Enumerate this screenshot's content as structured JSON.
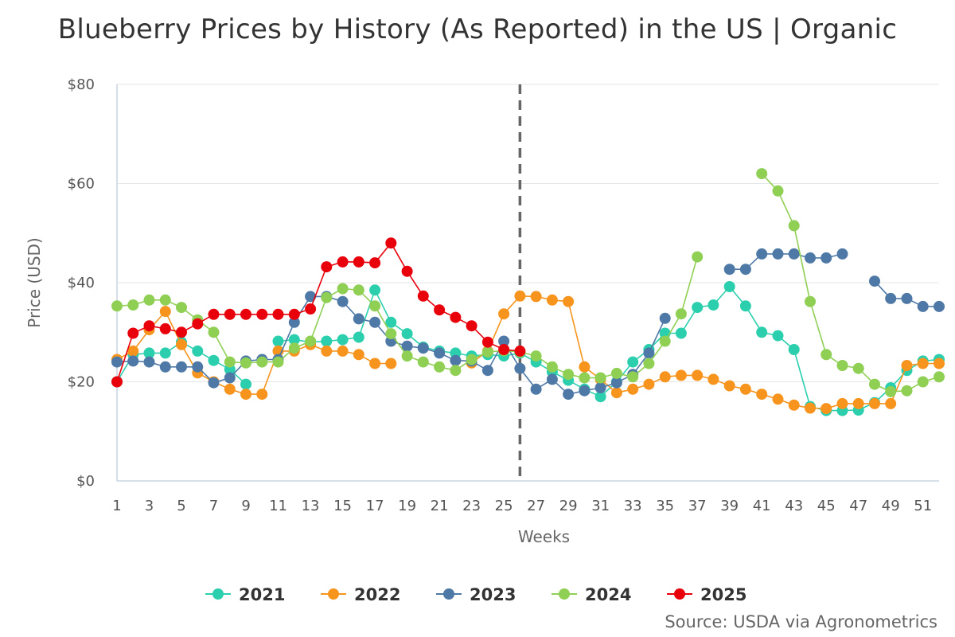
{
  "chart_data": {
    "type": "line",
    "title": "Blueberry Prices by History (As Reported) in the US | Organic",
    "xlabel": "Weeks",
    "ylabel": "Price (USD)",
    "ylim": [
      0,
      80
    ],
    "yticks": [
      0,
      20,
      40,
      60,
      80
    ],
    "ytick_labels": [
      "$0",
      "$20",
      "$40",
      "$60",
      "$80"
    ],
    "xlim": [
      1,
      52
    ],
    "xticks": [
      1,
      3,
      5,
      7,
      9,
      11,
      13,
      15,
      17,
      19,
      21,
      23,
      25,
      27,
      29,
      31,
      33,
      35,
      37,
      39,
      41,
      43,
      45,
      47,
      49,
      51
    ],
    "current_week_marker": 26,
    "grid": "horizontal",
    "legend_position": "bottom-center",
    "series": [
      {
        "name": "2021",
        "color": "#2bcfae",
        "values": [
          20,
          25.5,
          25.8,
          25.8,
          28,
          26.2,
          24.3,
          22.5,
          19.5,
          null,
          28.2,
          28.5,
          28,
          28.2,
          28.5,
          29,
          38.5,
          32,
          29.7,
          27,
          26.2,
          25.8,
          25.2,
          25.5,
          25.2,
          25.8,
          24,
          22,
          20.3,
          18.5,
          17,
          20,
          24,
          26.5,
          29.8,
          29.8,
          35,
          35.5,
          39.2,
          35.3,
          30,
          29.3,
          26.5,
          15,
          14.2,
          14.2,
          14.3,
          15.8,
          18.8,
          22.3,
          24.2,
          24.5
        ]
      },
      {
        "name": "2022",
        "color": "#f7941d",
        "values": [
          24.5,
          26.2,
          30.5,
          34.2,
          27.5,
          21.8,
          20,
          18.5,
          17.5,
          17.5,
          26.2,
          26.2,
          27.5,
          26.2,
          26.2,
          25.5,
          23.7,
          23.7,
          null,
          null,
          null,
          null,
          23.8,
          26.2,
          33.7,
          37.3,
          37.2,
          36.5,
          36.2,
          23,
          20.5,
          17.8,
          18.5,
          19.5,
          21,
          21.3,
          21.3,
          20.5,
          19.2,
          18.5,
          17.5,
          16.5,
          15.3,
          14.7,
          14.6,
          15.6,
          15.6,
          15.6,
          15.6,
          23.3,
          23.7,
          23.7
        ]
      },
      {
        "name": "2023",
        "color": "#4e79a7",
        "values": [
          24,
          24.2,
          24,
          23,
          23,
          23,
          19.8,
          20.8,
          24.2,
          24.5,
          24.5,
          32,
          37.2,
          37.2,
          36.2,
          32.7,
          32,
          28.2,
          27.2,
          26.8,
          25.8,
          24.3,
          24.2,
          22.3,
          28.2,
          22.7,
          18.5,
          20.5,
          17.5,
          18.2,
          18.8,
          19.8,
          21.5,
          25.8,
          32.8,
          null,
          null,
          null,
          42.7,
          42.7,
          45.8,
          45.8,
          45.8,
          45,
          45,
          45.8,
          null,
          40.3,
          36.8,
          36.8,
          35.2,
          35.2
        ]
      },
      {
        "name": "2024",
        "color": "#8fcf54",
        "values": [
          35.3,
          35.5,
          36.5,
          36.5,
          35,
          32.5,
          30,
          24,
          23.8,
          24,
          24,
          26.8,
          28.2,
          37,
          38.8,
          38.5,
          35.3,
          29.7,
          25.2,
          24,
          23,
          22.3,
          24.5,
          26,
          26.3,
          26,
          25.2,
          23,
          21.5,
          20.8,
          20.8,
          21.7,
          21,
          23.7,
          28.2,
          33.7,
          45.2,
          null,
          null,
          null,
          62,
          58.5,
          51.5,
          36.2,
          25.5,
          23.3,
          22.7,
          19.5,
          18,
          18.2,
          20,
          21
        ]
      },
      {
        "name": "2025",
        "color": "#e8000b",
        "values": [
          20,
          29.8,
          31.3,
          30.7,
          30,
          31.7,
          33.6,
          33.6,
          33.6,
          33.6,
          33.6,
          33.6,
          34.7,
          43.2,
          44.2,
          44.2,
          44,
          48,
          42.3,
          37.3,
          34.5,
          33,
          31.3,
          28,
          26.5,
          26.2
        ]
      }
    ],
    "credit": "Source: USDA via Agronometrics"
  }
}
